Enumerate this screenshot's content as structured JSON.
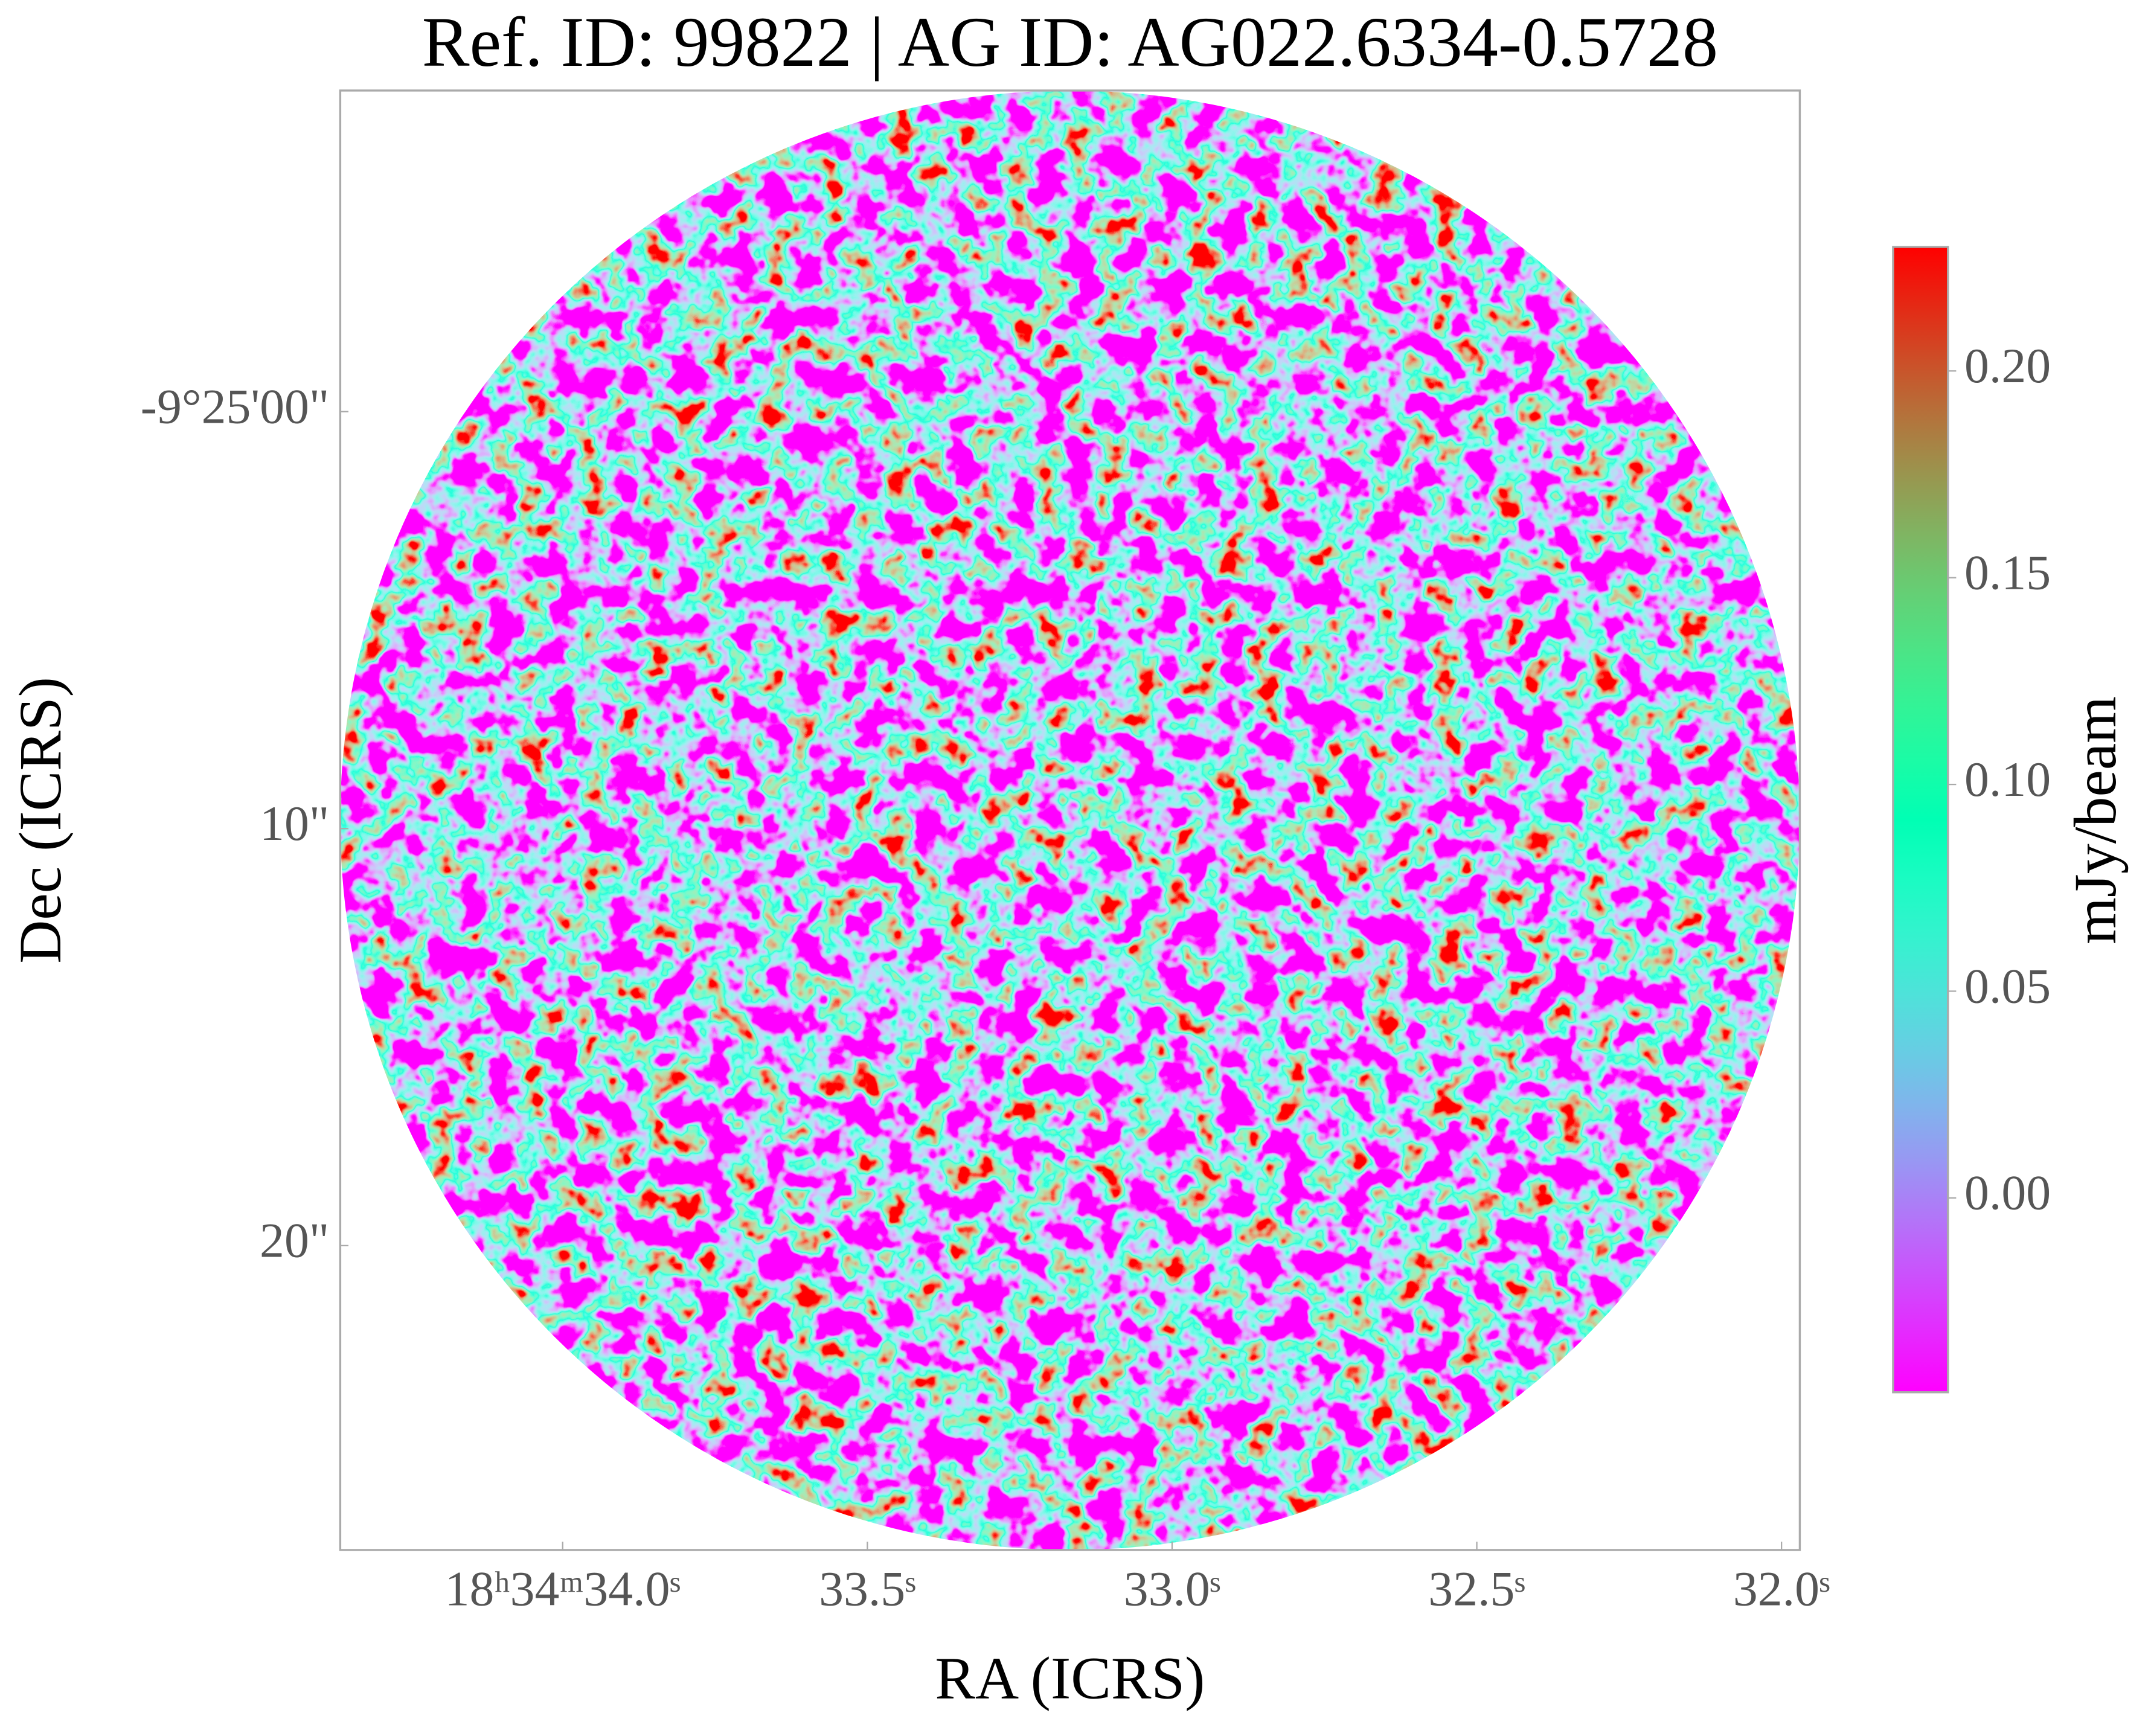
{
  "chart_data": {
    "type": "image",
    "title": "Ref. ID: 99822 | AG ID: AG022.6334-0.5728",
    "x_label": "RA (ICRS)",
    "y_label": "Dec (ICRS)",
    "colorbar_label": "mJy/beam",
    "colormap": "rainbow",
    "clim": [
      -0.047,
      0.23
    ],
    "cticks": [
      {
        "value": 0,
        "label": "0.00"
      },
      {
        "value": 0.05,
        "label": "0.05"
      },
      {
        "value": 0.1,
        "label": "0.10"
      },
      {
        "value": 0.15,
        "label": "0.15"
      },
      {
        "value": 0.2,
        "label": "0.20"
      }
    ],
    "xlim": [
      34.365,
      31.97
    ],
    "xticks": [
      {
        "value": 34.0,
        "label": "18ʰ34ᵐ34.0ˢ"
      },
      {
        "value": 33.5,
        "label": "33.5ˢ"
      },
      {
        "value": 33.0,
        "label": "33.0ˢ"
      },
      {
        "value": 32.5,
        "label": "32.5ˢ"
      },
      {
        "value": 32.0,
        "label": "32.0ˢ"
      }
    ],
    "ylim": [
      -7.7,
      27.3
    ],
    "yticks": [
      {
        "value": 0,
        "label": "-9°25'00\""
      },
      {
        "value": 10,
        "label": "10\""
      },
      {
        "value": 20,
        "label": "20\""
      }
    ]
  }
}
